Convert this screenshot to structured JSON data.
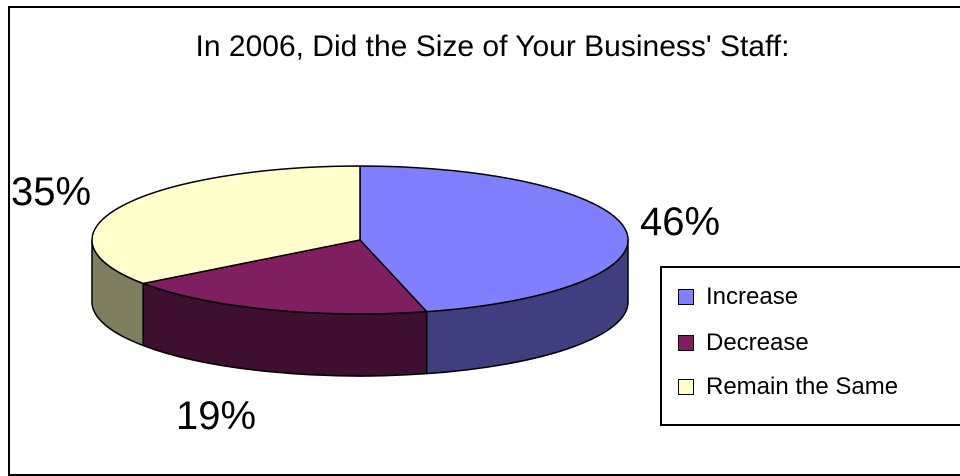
{
  "chart_data": {
    "type": "pie",
    "title": "In 2006, Did the Size of Your Business' Staff:",
    "categories": [
      "Increase",
      "Decrease",
      "Remain the Same"
    ],
    "values": [
      46,
      19,
      35
    ],
    "labels": [
      "46%",
      "19%",
      "35%"
    ],
    "colors": [
      "#8080ff",
      "#7f1f5f",
      "#ffffcc"
    ],
    "side_colors": [
      "#3f3f7f",
      "#3f0f2f",
      "#7f7f5f"
    ],
    "legend_position": "right",
    "style": "3d"
  }
}
